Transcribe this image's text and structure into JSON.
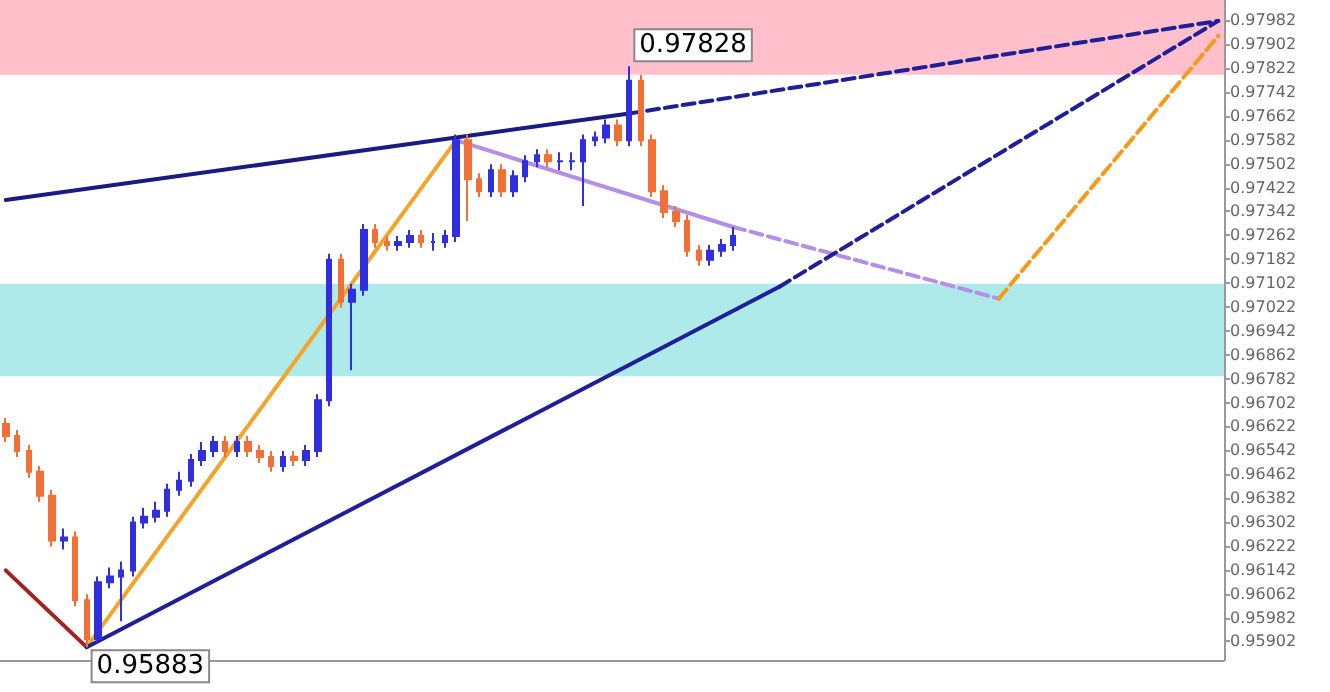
{
  "chart_data": {
    "type": "candlestick",
    "tick_labels": "y",
    "ylim": [
      0.9584,
      0.9805
    ],
    "yticks": [
      0.95902,
      0.95982,
      0.96062,
      0.96142,
      0.96222,
      0.96302,
      0.96382,
      0.96462,
      0.96542,
      0.96622,
      0.96702,
      0.96782,
      0.96862,
      0.96942,
      0.97022,
      0.97102,
      0.97182,
      0.97262,
      0.97342,
      0.97422,
      0.97502,
      0.97582,
      0.97662,
      0.97742,
      0.97822,
      0.97902,
      0.97982
    ],
    "categories": [
      null,
      null,
      null,
      null,
      null,
      null,
      null,
      null,
      null,
      null,
      null,
      null,
      null,
      null,
      null,
      null,
      null,
      null,
      null,
      null,
      null,
      null,
      null,
      null,
      null,
      null,
      null,
      null,
      null,
      null,
      null,
      null,
      null,
      null,
      null,
      null,
      null,
      null,
      null,
      null,
      null,
      null,
      null,
      null,
      null,
      null,
      null,
      null,
      null,
      null,
      null,
      null,
      null,
      null,
      null,
      null,
      null,
      null,
      null,
      null,
      null,
      null,
      null,
      null,
      null,
      null,
      null,
      null,
      null,
      null,
      null,
      null,
      null,
      null,
      null,
      null,
      null,
      null,
      null,
      null,
      null,
      null,
      null,
      null,
      null,
      null,
      null,
      null,
      null,
      null,
      null,
      null,
      null,
      null,
      null,
      null,
      null,
      null,
      null,
      null,
      null,
      null,
      null,
      null,
      null,
      null
    ],
    "ohlc": [
      [
        0.9663,
        0.9665,
        0.9657,
        0.9659
      ],
      [
        0.9659,
        0.9661,
        0.9652,
        0.9654
      ],
      [
        0.9654,
        0.9656,
        0.9645,
        0.9647
      ],
      [
        0.9647,
        0.9649,
        0.9637,
        0.9639
      ],
      [
        0.9639,
        0.9641,
        0.9622,
        0.9624
      ],
      [
        0.9624,
        0.9628,
        0.9621,
        0.9625
      ],
      [
        0.9625,
        0.9627,
        0.9602,
        0.9604
      ],
      [
        0.9604,
        0.9606,
        0.95883,
        0.9591
      ],
      [
        0.9591,
        0.9612,
        0.959,
        0.961
      ],
      [
        0.961,
        0.9615,
        0.9608,
        0.9612
      ],
      [
        0.9612,
        0.9617,
        0.9597,
        0.9614
      ],
      [
        0.9614,
        0.9632,
        0.9612,
        0.963
      ],
      [
        0.963,
        0.9635,
        0.9628,
        0.9632
      ],
      [
        0.9632,
        0.9637,
        0.963,
        0.9634
      ],
      [
        0.9634,
        0.9643,
        0.9632,
        0.9641
      ],
      [
        0.9641,
        0.9647,
        0.9639,
        0.9644
      ],
      [
        0.9644,
        0.9653,
        0.9642,
        0.9651
      ],
      [
        0.9651,
        0.9657,
        0.9649,
        0.9654
      ],
      [
        0.9654,
        0.9659,
        0.9652,
        0.9657
      ],
      [
        0.9657,
        0.9659,
        0.9652,
        0.9654
      ],
      [
        0.9654,
        0.9659,
        0.9652,
        0.9657
      ],
      [
        0.9657,
        0.9659,
        0.9652,
        0.9654
      ],
      [
        0.9654,
        0.9656,
        0.965,
        0.9652
      ],
      [
        0.9652,
        0.9654,
        0.9647,
        0.9649
      ],
      [
        0.9649,
        0.9654,
        0.9647,
        0.9652
      ],
      [
        0.9652,
        0.9654,
        0.9649,
        0.9651
      ],
      [
        0.9651,
        0.9656,
        0.9649,
        0.9654
      ],
      [
        0.9654,
        0.9673,
        0.9652,
        0.9671
      ],
      [
        0.9671,
        0.972,
        0.9669,
        0.9718
      ],
      [
        0.9718,
        0.972,
        0.9702,
        0.9704
      ],
      [
        0.9704,
        0.971,
        0.9681,
        0.9708
      ],
      [
        0.9708,
        0.973,
        0.9706,
        0.9728
      ],
      [
        0.9728,
        0.973,
        0.9722,
        0.9724
      ],
      [
        0.9724,
        0.9726,
        0.9721,
        0.9723
      ],
      [
        0.9723,
        0.9726,
        0.9721,
        0.9724
      ],
      [
        0.9724,
        0.9728,
        0.9722,
        0.9726
      ],
      [
        0.9726,
        0.9728,
        0.9722,
        0.9724
      ],
      [
        0.9724,
        0.9727,
        0.9721,
        0.9724
      ],
      [
        0.9724,
        0.9728,
        0.9722,
        0.9726
      ],
      [
        0.9726,
        0.976,
        0.9724,
        0.9758
      ],
      [
        0.9758,
        0.976,
        0.9731,
        0.9745
      ],
      [
        0.9745,
        0.9747,
        0.9739,
        0.9741
      ],
      [
        0.9741,
        0.975,
        0.9739,
        0.9748
      ],
      [
        0.9748,
        0.975,
        0.9739,
        0.9741
      ],
      [
        0.9741,
        0.9748,
        0.9739,
        0.9746
      ],
      [
        0.9746,
        0.9753,
        0.9744,
        0.9751
      ],
      [
        0.9751,
        0.9755,
        0.9749,
        0.9753
      ],
      [
        0.9753,
        0.9755,
        0.9749,
        0.9751
      ],
      [
        0.9751,
        0.9754,
        0.9748,
        0.9751
      ],
      [
        0.9751,
        0.9754,
        0.9748,
        0.9751
      ],
      [
        0.9751,
        0.976,
        0.9736,
        0.9758
      ],
      [
        0.9758,
        0.9761,
        0.9756,
        0.9759
      ],
      [
        0.9759,
        0.9765,
        0.9757,
        0.9763
      ],
      [
        0.9763,
        0.9765,
        0.9756,
        0.9758
      ],
      [
        0.9758,
        0.97828,
        0.9756,
        0.9778
      ],
      [
        0.9778,
        0.978,
        0.9756,
        0.9758
      ],
      [
        0.9758,
        0.976,
        0.9739,
        0.9741
      ],
      [
        0.9741,
        0.9743,
        0.9732,
        0.9734
      ],
      [
        0.9734,
        0.9736,
        0.9729,
        0.9731
      ],
      [
        0.9731,
        0.9733,
        0.9719,
        0.9721
      ],
      [
        0.9721,
        0.9723,
        0.9716,
        0.9718
      ],
      [
        0.9718,
        0.9723,
        0.9716,
        0.9721
      ],
      [
        0.9721,
        0.9725,
        0.9719,
        0.9723
      ],
      [
        0.9723,
        0.9729,
        0.9721,
        0.9726
      ],
      null,
      null,
      null,
      null,
      null,
      null,
      null,
      null,
      null,
      null,
      null,
      null,
      null,
      null,
      null,
      null,
      null,
      null,
      null,
      null,
      null,
      null,
      null,
      null,
      null,
      null,
      null,
      null,
      null,
      null,
      null,
      null,
      null,
      null,
      null,
      null,
      null,
      null,
      null,
      null,
      null,
      null
    ],
    "colors": [
      "#f27035",
      "#f27035",
      "#f27035",
      "#f27035",
      "#f27035",
      "#2f2fe0",
      "#f27035",
      "#f27035",
      "#2f2fe0",
      "#2f2fe0",
      "#2f2fe0",
      "#2f2fe0",
      "#2f2fe0",
      "#2f2fe0",
      "#2f2fe0",
      "#2f2fe0",
      "#2f2fe0",
      "#2f2fe0",
      "#2f2fe0",
      "#f27035",
      "#2f2fe0",
      "#f27035",
      "#f27035",
      "#f27035",
      "#2f2fe0",
      "#f27035",
      "#2f2fe0",
      "#2f2fe0",
      "#2f2fe0",
      "#f27035",
      "#2f2fe0",
      "#2f2fe0",
      "#f27035",
      "#f27035",
      "#2f2fe0",
      "#2f2fe0",
      "#f27035",
      "#2f2fe0",
      "#2f2fe0",
      "#2f2fe0",
      "#f27035",
      "#f27035",
      "#2f2fe0",
      "#f27035",
      "#2f2fe0",
      "#2f2fe0",
      "#2f2fe0",
      "#f27035",
      "#2f2fe0",
      "#2f2fe0",
      "#2f2fe0",
      "#2f2fe0",
      "#2f2fe0",
      "#f27035",
      "#2f2fe0",
      "#f27035",
      "#f27035",
      "#f27035",
      "#f27035",
      "#f27035",
      "#f27035",
      "#2f2fe0",
      "#2f2fe0",
      "#2f2fe0",
      null,
      null,
      null,
      null,
      null,
      null,
      null,
      null,
      null,
      null,
      null,
      null,
      null,
      null,
      null,
      null,
      null,
      null,
      null,
      null,
      null,
      null,
      null,
      null,
      null,
      null,
      null,
      null,
      null,
      null,
      null,
      null,
      null,
      null,
      null,
      null,
      null,
      null,
      null,
      null,
      null,
      null
    ],
    "series": [
      {
        "type": "line",
        "color": "#a52020",
        "line_style": "solid",
        "values": [
          0.9614,
          null,
          null,
          null,
          null,
          null,
          null,
          0.95883,
          null,
          null,
          null,
          null,
          null,
          null,
          null,
          null,
          null,
          null,
          null,
          null,
          null,
          null,
          null,
          null,
          null,
          null,
          null,
          null,
          null,
          null,
          null,
          null,
          null,
          null,
          null,
          null,
          null,
          null,
          null,
          null,
          null,
          null,
          null,
          null,
          null,
          null,
          null,
          null,
          null,
          null,
          null,
          null,
          null,
          null,
          null,
          null,
          null,
          null,
          null,
          null,
          null,
          null,
          null,
          null,
          null,
          null,
          null,
          null,
          null,
          null,
          null,
          null,
          null,
          null,
          null,
          null,
          null,
          null,
          null,
          null,
          null,
          null,
          null,
          null,
          null,
          null,
          null,
          null,
          null,
          null,
          null,
          null,
          null,
          null,
          null,
          null,
          null,
          null,
          null,
          null,
          null,
          null,
          null,
          null,
          null,
          null
        ]
      },
      {
        "type": "line",
        "color": "#f5a42a",
        "line_style": "solid",
        "values": [
          null,
          null,
          null,
          null,
          null,
          null,
          null,
          0.95883,
          null,
          null,
          null,
          null,
          null,
          null,
          null,
          null,
          null,
          null,
          null,
          null,
          null,
          null,
          null,
          null,
          null,
          null,
          null,
          null,
          null,
          null,
          null,
          null,
          null,
          null,
          null,
          null,
          null,
          null,
          null,
          0.9758,
          null,
          null,
          null,
          null,
          null,
          null,
          null,
          null,
          null,
          null,
          null,
          null,
          null,
          null,
          null,
          null,
          null,
          null,
          null,
          null,
          null,
          null,
          null,
          null,
          null,
          null,
          null,
          null,
          null,
          null,
          null,
          null,
          null,
          null,
          null,
          null,
          null,
          null,
          null,
          null,
          null,
          null,
          null,
          null,
          null,
          null,
          null,
          null,
          null,
          null,
          null,
          null,
          null,
          null,
          null,
          null,
          null,
          null,
          null,
          null,
          null,
          null,
          null,
          null,
          null,
          null
        ]
      },
      {
        "type": "line",
        "color": "#b48ee8",
        "line_style": "solid",
        "values": [
          null,
          null,
          null,
          null,
          null,
          null,
          null,
          null,
          null,
          null,
          null,
          null,
          null,
          null,
          null,
          null,
          null,
          null,
          null,
          null,
          null,
          null,
          null,
          null,
          null,
          null,
          null,
          null,
          null,
          null,
          null,
          null,
          null,
          null,
          null,
          null,
          null,
          null,
          null,
          0.9758,
          null,
          null,
          null,
          null,
          null,
          null,
          null,
          null,
          null,
          null,
          null,
          null,
          null,
          null,
          null,
          null,
          null,
          null,
          null,
          null,
          null,
          null,
          null,
          0.9729,
          null,
          null,
          null,
          null,
          null,
          null,
          null,
          null,
          null,
          null,
          null,
          null,
          null,
          null,
          null,
          null,
          null,
          null,
          null,
          null,
          null,
          null,
          null,
          null,
          null,
          null,
          null,
          null,
          null,
          null,
          null,
          null,
          null,
          null,
          null,
          null,
          null,
          null,
          null,
          null,
          null,
          null
        ]
      },
      {
        "type": "line",
        "color": "#b48ee8",
        "line_style": "dashed",
        "values": [
          null,
          null,
          null,
          null,
          null,
          null,
          null,
          null,
          null,
          null,
          null,
          null,
          null,
          null,
          null,
          null,
          null,
          null,
          null,
          null,
          null,
          null,
          null,
          null,
          null,
          null,
          null,
          null,
          null,
          null,
          null,
          null,
          null,
          null,
          null,
          null,
          null,
          null,
          null,
          null,
          null,
          null,
          null,
          null,
          null,
          null,
          null,
          null,
          null,
          null,
          null,
          null,
          null,
          null,
          null,
          null,
          null,
          null,
          null,
          null,
          null,
          null,
          null,
          0.9729,
          null,
          null,
          null,
          null,
          null,
          null,
          null,
          null,
          null,
          null,
          null,
          null,
          null,
          null,
          null,
          null,
          null,
          null,
          null,
          null,
          null,
          null,
          0.9705,
          null,
          null,
          null,
          null,
          null,
          null,
          null,
          null,
          null,
          null,
          null,
          null,
          null,
          null,
          null,
          null,
          null,
          null,
          null
        ]
      },
      {
        "type": "line",
        "color": "#f59a1a",
        "line_style": "dashed",
        "values": [
          null,
          null,
          null,
          null,
          null,
          null,
          null,
          null,
          null,
          null,
          null,
          null,
          null,
          null,
          null,
          null,
          null,
          null,
          null,
          null,
          null,
          null,
          null,
          null,
          null,
          null,
          null,
          null,
          null,
          null,
          null,
          null,
          null,
          null,
          null,
          null,
          null,
          null,
          null,
          null,
          null,
          null,
          null,
          null,
          null,
          null,
          null,
          null,
          null,
          null,
          null,
          null,
          null,
          null,
          null,
          null,
          null,
          null,
          null,
          null,
          null,
          null,
          null,
          null,
          null,
          null,
          null,
          null,
          null,
          null,
          null,
          null,
          null,
          null,
          null,
          null,
          null,
          null,
          null,
          null,
          null,
          null,
          null,
          null,
          null,
          null,
          0.9705,
          null,
          null,
          null,
          null,
          null,
          null,
          null,
          null,
          null,
          null,
          null,
          null,
          null,
          null,
          null,
          null,
          null,
          null,
          0.9793
        ]
      },
      {
        "type": "line",
        "color": "#1a1a80",
        "line_style": "solid",
        "values": [
          0.9738,
          null,
          null,
          null,
          null,
          null,
          null,
          null,
          null,
          null,
          null,
          null,
          null,
          null,
          null,
          null,
          null,
          null,
          null,
          null,
          null,
          null,
          null,
          null,
          null,
          null,
          null,
          null,
          null,
          null,
          null,
          null,
          null,
          null,
          null,
          null,
          null,
          null,
          null,
          null,
          null,
          null,
          null,
          null,
          null,
          null,
          null,
          null,
          null,
          null,
          null,
          null,
          null,
          null,
          0.9767,
          null,
          null,
          null,
          null,
          null,
          null,
          null,
          null,
          null,
          null,
          null,
          null,
          null,
          null,
          null,
          null,
          null,
          null,
          null,
          null,
          null,
          null,
          null,
          null,
          null,
          null,
          null,
          null,
          null,
          null,
          null,
          null,
          null,
          null,
          null,
          null,
          null,
          null,
          null,
          null,
          null,
          null,
          null,
          null,
          null,
          null,
          null,
          null,
          null,
          null,
          null
        ]
      },
      {
        "type": "line",
        "color": "#1f1f99",
        "line_style": "dashed",
        "values": [
          null,
          null,
          null,
          null,
          null,
          null,
          null,
          null,
          null,
          null,
          null,
          null,
          null,
          null,
          null,
          null,
          null,
          null,
          null,
          null,
          null,
          null,
          null,
          null,
          null,
          null,
          null,
          null,
          null,
          null,
          null,
          null,
          null,
          null,
          null,
          null,
          null,
          null,
          null,
          null,
          null,
          null,
          null,
          null,
          null,
          null,
          null,
          null,
          null,
          null,
          null,
          null,
          null,
          null,
          0.9767,
          null,
          null,
          null,
          null,
          null,
          null,
          null,
          null,
          null,
          null,
          null,
          null,
          null,
          null,
          null,
          null,
          null,
          null,
          null,
          null,
          null,
          null,
          null,
          null,
          null,
          null,
          null,
          null,
          null,
          null,
          null,
          null,
          null,
          null,
          null,
          null,
          null,
          null,
          null,
          null,
          null,
          null,
          null,
          null,
          null,
          null,
          null,
          null,
          null,
          null,
          0.9798
        ]
      },
      {
        "type": "line",
        "color": "#1f1f99",
        "line_style": "solid",
        "values": [
          null,
          null,
          null,
          null,
          null,
          null,
          null,
          0.95883,
          null,
          null,
          null,
          null,
          null,
          null,
          null,
          null,
          null,
          null,
          null,
          null,
          null,
          null,
          null,
          null,
          null,
          null,
          null,
          null,
          null,
          null,
          null,
          null,
          null,
          null,
          null,
          null,
          null,
          null,
          null,
          null,
          null,
          null,
          null,
          null,
          null,
          null,
          null,
          null,
          null,
          null,
          null,
          null,
          null,
          null,
          null,
          null,
          null,
          null,
          null,
          null,
          null,
          null,
          null,
          null,
          null,
          null,
          null,
          0.9709,
          null,
          null,
          null,
          null,
          null,
          null,
          null,
          null,
          null,
          null,
          null,
          null,
          null,
          null,
          null,
          null,
          null,
          null,
          null,
          null,
          null,
          null,
          null,
          null,
          null,
          null,
          null,
          null,
          null,
          null,
          null,
          null,
          null,
          null,
          null,
          null,
          null,
          null
        ]
      },
      {
        "type": "line",
        "color": "#1f1f99",
        "line_style": "dashed",
        "values": [
          null,
          null,
          null,
          null,
          null,
          null,
          null,
          null,
          null,
          null,
          null,
          null,
          null,
          null,
          null,
          null,
          null,
          null,
          null,
          null,
          null,
          null,
          null,
          null,
          null,
          null,
          null,
          null,
          null,
          null,
          null,
          null,
          null,
          null,
          null,
          null,
          null,
          null,
          null,
          null,
          null,
          null,
          null,
          null,
          null,
          null,
          null,
          null,
          null,
          null,
          null,
          null,
          null,
          null,
          null,
          null,
          null,
          null,
          null,
          null,
          null,
          null,
          null,
          null,
          null,
          null,
          null,
          0.9709,
          null,
          null,
          null,
          null,
          null,
          null,
          null,
          null,
          null,
          null,
          null,
          null,
          null,
          null,
          null,
          null,
          null,
          null,
          null,
          null,
          null,
          null,
          null,
          null,
          null,
          null,
          null,
          null,
          null,
          null,
          null,
          null,
          null,
          null,
          null,
          null,
          null,
          0.9798
        ]
      }
    ],
    "bands": [
      {
        "axis": "y",
        "from": 0.978,
        "to": 0.9805,
        "color": "#ffc0cb"
      },
      {
        "axis": "y",
        "from": 0.9679,
        "to": 0.971,
        "color": "#aeeaea"
      }
    ],
    "annotations": [
      {
        "text": "0.97828",
        "y": 0.97828
      },
      "0.95883"
    ]
  }
}
